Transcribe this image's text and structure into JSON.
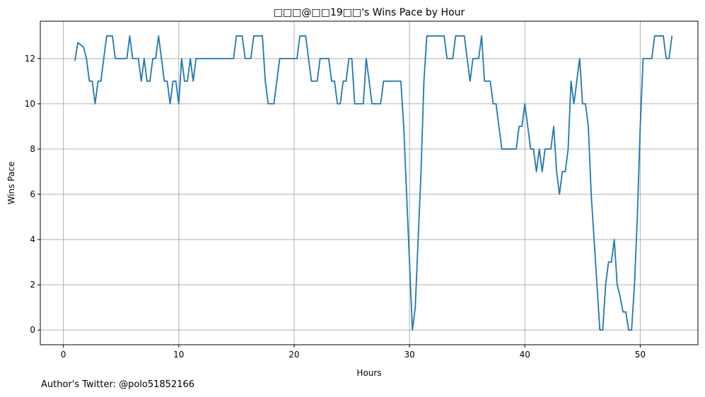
{
  "footnote": "Author's Twitter: @polo51852166",
  "chart_data": {
    "type": "line",
    "title": "□□□@□□19□□'s Wins Pace by Hour",
    "xlabel": "Hours",
    "ylabel": "Wins Pace",
    "xlim": [
      -2,
      55
    ],
    "ylim": [
      -0.65,
      13.65
    ],
    "xticks": [
      0,
      10,
      20,
      30,
      40,
      50
    ],
    "yticks": [
      0,
      2,
      4,
      6,
      8,
      10,
      12
    ],
    "grid": true,
    "color": "#1f77b4",
    "series": [
      {
        "x": [
          1.0,
          1.25,
          1.5,
          1.75,
          2.0,
          2.25,
          2.5,
          2.75,
          3.0,
          3.25,
          3.5,
          3.75,
          4.0,
          4.25,
          4.5,
          4.75,
          5.0,
          5.25,
          5.5,
          5.75,
          6.0,
          6.25,
          6.5,
          6.75,
          7.0,
          7.25,
          7.5,
          7.75,
          8.0,
          8.25,
          8.5,
          8.75,
          9.0,
          9.25,
          9.5,
          9.75,
          10.0,
          10.25,
          10.5,
          10.75,
          11.0,
          11.25,
          11.5,
          11.75,
          12.0,
          12.25,
          12.5,
          12.75,
          13.0,
          13.25,
          13.5,
          13.75,
          14.0,
          14.25,
          14.5,
          14.75,
          15.0,
          15.25,
          15.5,
          15.75,
          16.0,
          16.25,
          16.5,
          16.75,
          17.0,
          17.25,
          17.5,
          17.75,
          18.0,
          18.25,
          18.5,
          18.75,
          19.0,
          19.25,
          19.5,
          19.75,
          20.0,
          20.25,
          20.5,
          20.75,
          21.0,
          21.25,
          21.5,
          21.75,
          22.0,
          22.25,
          22.5,
          22.75,
          23.0,
          23.25,
          23.5,
          23.75,
          24.0,
          24.25,
          24.5,
          24.75,
          25.0,
          25.25,
          25.5,
          25.75,
          26.0,
          26.25,
          26.5,
          26.75,
          27.0,
          27.25,
          27.5,
          27.75,
          28.0,
          28.25,
          28.5,
          28.75,
          29.0,
          29.25,
          29.5,
          29.75,
          30.0,
          30.25,
          30.5,
          30.75,
          31.0,
          31.25,
          31.5,
          31.75,
          32.0,
          32.25,
          32.5,
          32.75,
          33.0,
          33.25,
          33.5,
          33.75,
          34.0,
          34.25,
          34.5,
          34.75,
          35.0,
          35.25,
          35.5,
          35.75,
          36.0,
          36.25,
          36.5,
          36.75,
          37.0,
          37.25,
          37.5,
          37.75,
          38.0,
          38.25,
          38.5,
          38.75,
          39.0,
          39.25,
          39.5,
          39.75,
          40.0,
          40.25,
          40.5,
          40.75,
          41.0,
          41.25,
          41.5,
          41.75,
          42.0,
          42.25,
          42.5,
          42.75,
          43.0,
          43.25,
          43.5,
          43.75,
          44.0,
          44.25,
          44.5,
          44.75,
          45.0,
          45.25,
          45.5,
          45.75,
          46.0,
          46.25,
          46.5,
          46.75,
          47.0,
          47.25,
          47.5,
          47.75,
          48.0,
          48.25,
          48.5,
          48.75,
          49.0,
          49.25,
          49.5,
          49.75,
          50.0,
          50.25,
          50.5,
          50.75,
          51.0,
          51.25,
          51.5,
          51.75,
          52.0,
          52.25,
          52.5,
          52.75
        ],
        "values": [
          11.9,
          12.7,
          12.6,
          12.5,
          12.0,
          11.0,
          11.0,
          10.0,
          11.0,
          11.0,
          12.0,
          13.0,
          13.0,
          13.0,
          12.0,
          12.0,
          12.0,
          12.0,
          12.0,
          13.0,
          12.0,
          12.0,
          12.0,
          11.0,
          12.0,
          11.0,
          11.0,
          12.0,
          12.0,
          13.0,
          12.0,
          11.0,
          11.0,
          10.0,
          11.0,
          11.0,
          10.0,
          12.0,
          11.0,
          11.0,
          12.0,
          11.0,
          12.0,
          12.0,
          12.0,
          12.0,
          12.0,
          12.0,
          12.0,
          12.0,
          12.0,
          12.0,
          12.0,
          12.0,
          12.0,
          12.0,
          13.0,
          13.0,
          13.0,
          12.0,
          12.0,
          12.0,
          13.0,
          13.0,
          13.0,
          13.0,
          11.0,
          10.0,
          10.0,
          10.0,
          11.0,
          12.0,
          12.0,
          12.0,
          12.0,
          12.0,
          12.0,
          12.0,
          13.0,
          13.0,
          13.0,
          12.0,
          11.0,
          11.0,
          11.0,
          12.0,
          12.0,
          12.0,
          12.0,
          11.0,
          11.0,
          10.0,
          10.0,
          11.0,
          11.0,
          12.0,
          12.0,
          10.0,
          10.0,
          10.0,
          10.0,
          12.0,
          11.0,
          10.0,
          10.0,
          10.0,
          10.0,
          11.0,
          11.0,
          11.0,
          11.0,
          11.0,
          11.0,
          11.0,
          9.0,
          6.0,
          3.0,
          0.0,
          1.0,
          4.0,
          7.0,
          11.0,
          13.0,
          13.0,
          13.0,
          13.0,
          13.0,
          13.0,
          13.0,
          12.0,
          12.0,
          12.0,
          13.0,
          13.0,
          13.0,
          13.0,
          12.0,
          11.0,
          12.0,
          12.0,
          12.0,
          13.0,
          11.0,
          11.0,
          11.0,
          10.0,
          10.0,
          9.0,
          8.0,
          8.0,
          8.0,
          8.0,
          8.0,
          8.0,
          9.0,
          9.0,
          10.0,
          9.0,
          8.0,
          8.0,
          7.0,
          8.0,
          7.0,
          8.0,
          8.0,
          8.0,
          9.0,
          7.0,
          6.0,
          7.0,
          7.0,
          8.0,
          11.0,
          10.0,
          11.0,
          12.0,
          10.0,
          10.0,
          9.0,
          6.0,
          4.0,
          2.0,
          0.0,
          0.0,
          2.0,
          3.0,
          3.0,
          4.0,
          2.0,
          1.5,
          0.8,
          0.8,
          0.0,
          0.0,
          2.0,
          5.0,
          9.0,
          12.0,
          12.0,
          12.0,
          12.0,
          13.0,
          13.0,
          13.0,
          13.0,
          12.0,
          12.0,
          13.0
        ]
      }
    ]
  }
}
